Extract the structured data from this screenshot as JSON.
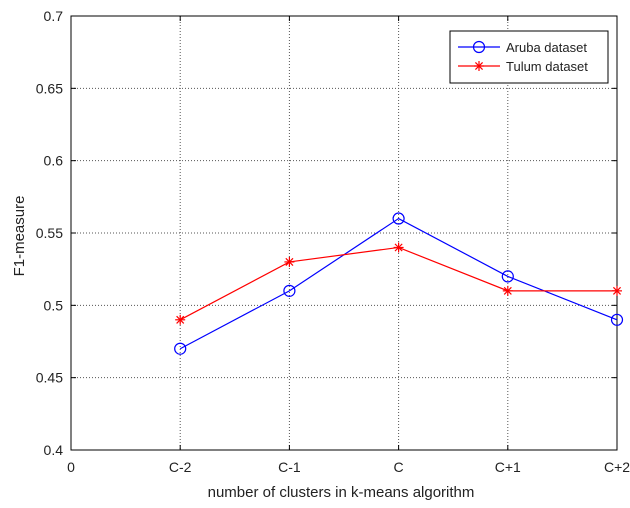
{
  "chart_data": {
    "type": "line",
    "title": "",
    "xlabel": "number of clusters in k-means algorithm",
    "ylabel": "F1-measure",
    "x_tick_labels": [
      "0",
      "C-2",
      "C-1",
      "C",
      "C+1",
      "C+2"
    ],
    "categories": [
      "C-2",
      "C-1",
      "C",
      "C+1",
      "C+2"
    ],
    "x": [
      1,
      2,
      3,
      4,
      5
    ],
    "xlim": [
      0,
      5
    ],
    "ylim": [
      0.4,
      0.7
    ],
    "y_tick_labels": [
      "0.4",
      "0.45",
      "0.5",
      "0.55",
      "0.6",
      "0.65",
      "0.7"
    ],
    "y_ticks": [
      0.4,
      0.45,
      0.5,
      0.55,
      0.6,
      0.65,
      0.7
    ],
    "grid": true,
    "legend_position": "top-right",
    "series": [
      {
        "name": "Aruba dataset",
        "values": [
          0.47,
          0.51,
          0.56,
          0.52,
          0.49
        ],
        "color": "#0000ff",
        "marker": "circle"
      },
      {
        "name": "Tulum dataset",
        "values": [
          0.49,
          0.53,
          0.54,
          0.51,
          0.51
        ],
        "color": "#ff0000",
        "marker": "asterisk"
      }
    ]
  }
}
